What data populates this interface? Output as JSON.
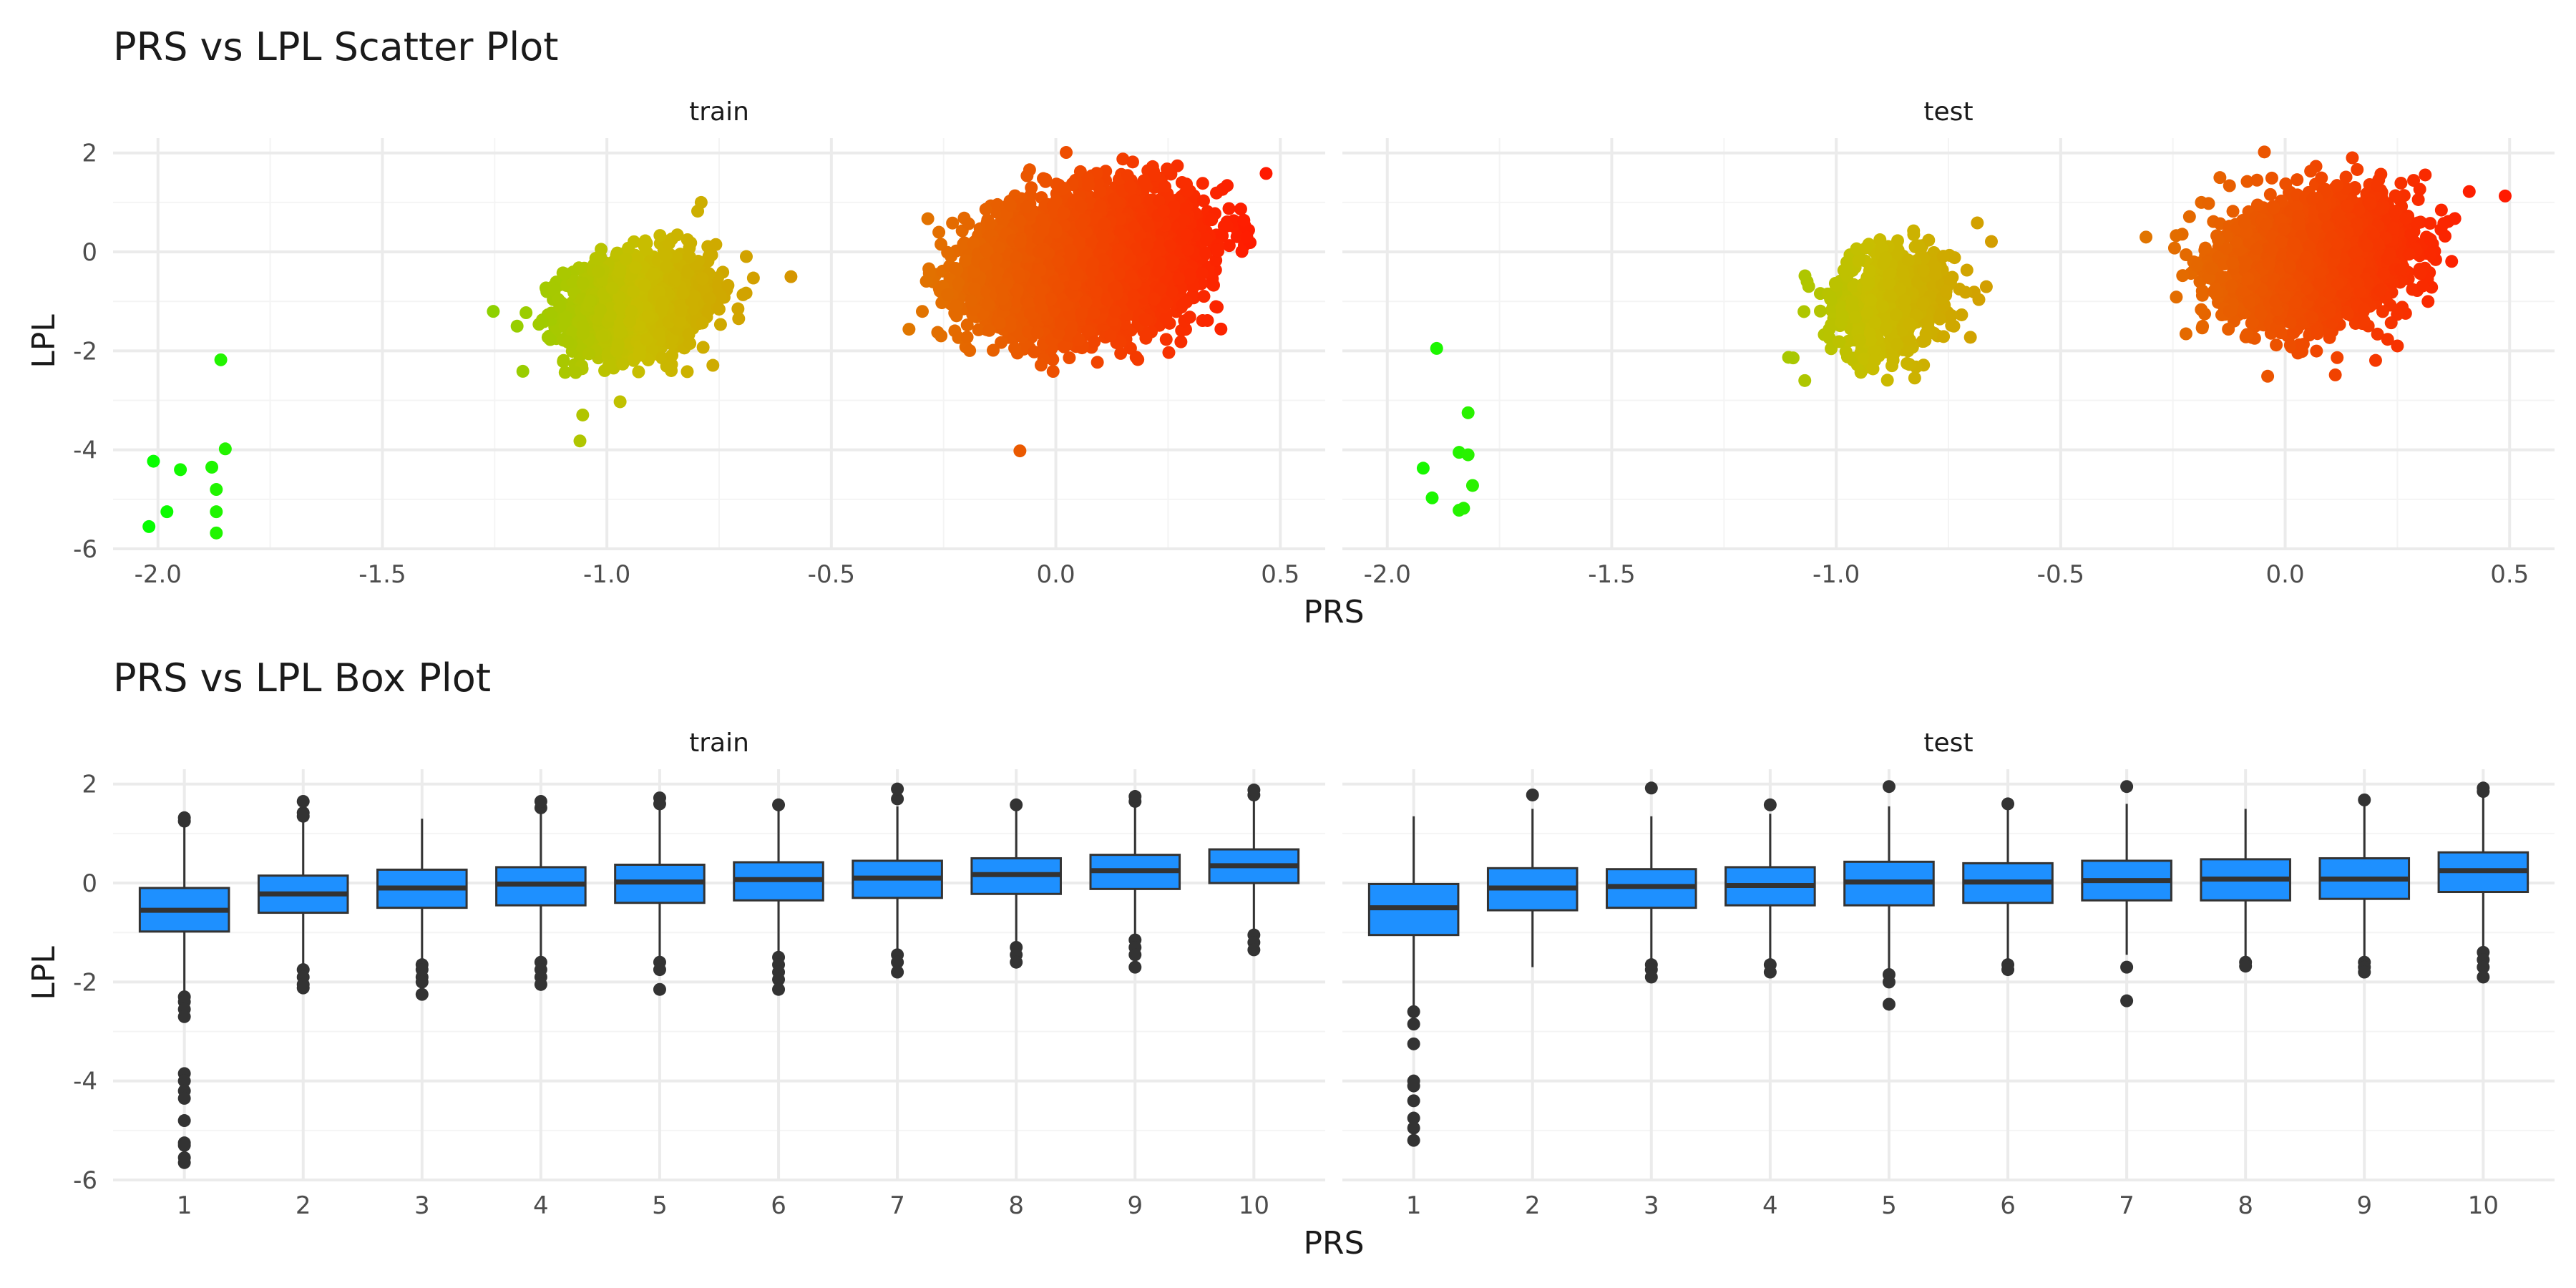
{
  "chart_data": [
    {
      "type": "scatter",
      "title": "PRS vs LPL Scatter Plot",
      "xlabel": "PRS",
      "ylabel": "LPL",
      "xlim": [
        -2.1,
        0.6
      ],
      "ylim": [
        -6,
        2.3
      ],
      "xticks": [
        "-2.0",
        "-1.5",
        "-1.0",
        "-0.5",
        "0.0",
        "0.5"
      ],
      "yticks": [
        "-6",
        "-4",
        "-2",
        "0",
        "2"
      ],
      "grid": true,
      "legend": "none",
      "color_scale": [
        "#00ff00",
        "#ff1a00"
      ],
      "facets": [
        {
          "label": "train",
          "clusters": [
            {
              "group": "low",
              "x_center": -1.93,
              "y_center": -4.7,
              "points": [
                [
                  -2.01,
                  -4.23
                ],
                [
                  -1.88,
                  -4.35
                ],
                [
                  -1.95,
                  -4.4
                ],
                [
                  -1.85,
                  -3.98
                ],
                [
                  -1.98,
                  -5.25
                ],
                [
                  -1.87,
                  -4.8
                ],
                [
                  -1.87,
                  -5.25
                ],
                [
                  -2.02,
                  -5.55
                ],
                [
                  -1.87,
                  -5.68
                ],
                [
                  -1.86,
                  -2.18
                ]
              ]
            },
            {
              "group": "mid",
              "x_center": -0.93,
              "y_center": -1.05,
              "x_sd": 0.08,
              "y_sd": 0.5,
              "n": 1500
            },
            {
              "group": "high",
              "x_center": 0.07,
              "y_center": -0.2,
              "x_sd": 0.11,
              "y_sd": 0.6,
              "n": 6000
            }
          ],
          "outliers": [
            [
              -0.79,
              1.0
            ],
            [
              -1.06,
              -3.82
            ],
            [
              -0.08,
              -4.02
            ],
            [
              -0.59,
              -0.5
            ],
            [
              -1.2,
              -1.5
            ]
          ]
        },
        {
          "label": "test",
          "clusters": [
            {
              "group": "low",
              "x_center": -1.85,
              "y_center": -4.3,
              "points": [
                [
                  -1.89,
                  -1.95
                ],
                [
                  -1.82,
                  -3.25
                ],
                [
                  -1.84,
                  -4.05
                ],
                [
                  -1.82,
                  -4.1
                ],
                [
                  -1.92,
                  -4.37
                ],
                [
                  -1.81,
                  -4.72
                ],
                [
                  -1.9,
                  -4.97
                ],
                [
                  -1.84,
                  -5.22
                ],
                [
                  -1.83,
                  -5.18
                ]
              ]
            },
            {
              "group": "mid",
              "x_center": -0.88,
              "y_center": -1.0,
              "x_sd": 0.07,
              "y_sd": 0.55,
              "n": 650
            },
            {
              "group": "high",
              "x_center": 0.07,
              "y_center": -0.15,
              "x_sd": 0.1,
              "y_sd": 0.6,
              "n": 2600
            }
          ],
          "outliers": [
            [
              0.49,
              1.13
            ],
            [
              0.41,
              1.22
            ],
            [
              -0.31,
              0.3
            ],
            [
              0.25,
              -1.9
            ],
            [
              -1.07,
              -2.6
            ]
          ]
        }
      ]
    },
    {
      "type": "box",
      "title": "PRS vs LPL Box Plot",
      "xlabel": "PRS",
      "ylabel": "LPL",
      "ylim": [
        -6,
        2.3
      ],
      "categories": [
        "1",
        "2",
        "3",
        "4",
        "5",
        "6",
        "7",
        "8",
        "9",
        "10"
      ],
      "yticks": [
        "-6",
        "-4",
        "-2",
        "0",
        "2"
      ],
      "grid": true,
      "fill": "#1e90ff",
      "facets": [
        {
          "label": "train",
          "boxes": [
            {
              "q1": -0.98,
              "median": -0.55,
              "q3": -0.1,
              "low": -2.2,
              "high": 1.2,
              "outliers": [
                1.25,
                1.32,
                -2.3,
                -2.4,
                -2.55,
                -2.7,
                -3.85,
                -4.0,
                -4.2,
                -4.35,
                -4.8,
                -5.25,
                -5.3,
                -5.55,
                -5.65
              ]
            },
            {
              "q1": -0.6,
              "median": -0.22,
              "q3": 0.15,
              "low": -1.7,
              "high": 1.25,
              "outliers": [
                1.35,
                1.42,
                1.65,
                -1.75,
                -1.9,
                -2.05,
                -2.12
              ]
            },
            {
              "q1": -0.5,
              "median": -0.1,
              "q3": 0.27,
              "low": -1.6,
              "high": 1.3,
              "outliers": [
                -1.65,
                -1.75,
                -1.9,
                -2.0,
                -2.25
              ]
            },
            {
              "q1": -0.45,
              "median": -0.02,
              "q3": 0.32,
              "low": -1.55,
              "high": 1.45,
              "outliers": [
                1.52,
                1.65,
                -1.6,
                -1.75,
                -1.9,
                -2.05
              ]
            },
            {
              "q1": -0.4,
              "median": 0.02,
              "q3": 0.37,
              "low": -1.5,
              "high": 1.5,
              "outliers": [
                1.6,
                1.72,
                -1.6,
                -1.75,
                -2.15
              ]
            },
            {
              "q1": -0.35,
              "median": 0.07,
              "q3": 0.42,
              "low": -1.45,
              "high": 1.5,
              "outliers": [
                1.58,
                -1.5,
                -1.65,
                -1.8,
                -1.95,
                -2.15
              ]
            },
            {
              "q1": -0.3,
              "median": 0.1,
              "q3": 0.45,
              "low": -1.4,
              "high": 1.55,
              "outliers": [
                1.7,
                1.9,
                -1.45,
                -1.6,
                -1.8
              ]
            },
            {
              "q1": -0.22,
              "median": 0.17,
              "q3": 0.5,
              "low": -1.25,
              "high": 1.5,
              "outliers": [
                1.58,
                -1.3,
                -1.45,
                -1.6
              ]
            },
            {
              "q1": -0.12,
              "median": 0.25,
              "q3": 0.57,
              "low": -1.1,
              "high": 1.55,
              "outliers": [
                1.65,
                1.75,
                -1.15,
                -1.3,
                -1.45,
                -1.7
              ]
            },
            {
              "q1": 0.0,
              "median": 0.35,
              "q3": 0.68,
              "low": -1.0,
              "high": 1.7,
              "outliers": [
                1.78,
                1.88,
                -1.05,
                -1.2,
                -1.35
              ]
            }
          ]
        },
        {
          "label": "test",
          "boxes": [
            {
              "q1": -1.05,
              "median": -0.5,
              "q3": -0.02,
              "low": -2.55,
              "high": 1.35,
              "outliers": [
                -2.6,
                -2.85,
                -3.25,
                -4.0,
                -4.1,
                -4.4,
                -4.75,
                -4.95,
                -5.2
              ]
            },
            {
              "q1": -0.55,
              "median": -0.1,
              "q3": 0.3,
              "low": -1.7,
              "high": 1.5,
              "outliers": [
                1.78
              ]
            },
            {
              "q1": -0.5,
              "median": -0.07,
              "q3": 0.28,
              "low": -1.6,
              "high": 1.35,
              "outliers": [
                1.92,
                -1.65,
                -1.75,
                -1.9
              ]
            },
            {
              "q1": -0.45,
              "median": -0.05,
              "q3": 0.32,
              "low": -1.6,
              "high": 1.4,
              "outliers": [
                1.58,
                -1.65,
                -1.8
              ]
            },
            {
              "q1": -0.45,
              "median": 0.02,
              "q3": 0.43,
              "low": -1.8,
              "high": 1.55,
              "outliers": [
                1.95,
                -1.85,
                -2.0,
                -2.45
              ]
            },
            {
              "q1": -0.4,
              "median": 0.02,
              "q3": 0.4,
              "low": -1.6,
              "high": 1.55,
              "outliers": [
                1.6,
                -1.65,
                -1.75
              ]
            },
            {
              "q1": -0.35,
              "median": 0.05,
              "q3": 0.45,
              "low": -1.45,
              "high": 1.6,
              "outliers": [
                1.95,
                -1.7,
                -2.38
              ]
            },
            {
              "q1": -0.35,
              "median": 0.08,
              "q3": 0.48,
              "low": -1.55,
              "high": 1.5,
              "outliers": [
                -1.6,
                -1.68
              ]
            },
            {
              "q1": -0.32,
              "median": 0.08,
              "q3": 0.5,
              "low": -1.55,
              "high": 1.6,
              "outliers": [
                1.68,
                -1.6,
                -1.7,
                -1.8
              ]
            },
            {
              "q1": -0.18,
              "median": 0.25,
              "q3": 0.62,
              "low": -1.3,
              "high": 1.8,
              "outliers": [
                1.85,
                1.92,
                -1.4,
                -1.55,
                -1.7,
                -1.9
              ]
            }
          ]
        }
      ]
    }
  ]
}
